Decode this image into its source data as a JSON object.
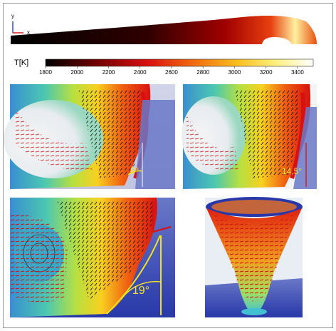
{
  "axes": {
    "y": "y",
    "x": "x"
  },
  "colorbar": {
    "label": "T[K]",
    "lim": [
      1800,
      3500
    ],
    "ticks": [
      1800,
      2000,
      2200,
      2400,
      2600,
      2800,
      3000,
      3200,
      3400
    ]
  },
  "panels": [
    {
      "angle": "8°"
    },
    {
      "angle": "14,5°"
    },
    {
      "angle": "19°"
    }
  ]
}
